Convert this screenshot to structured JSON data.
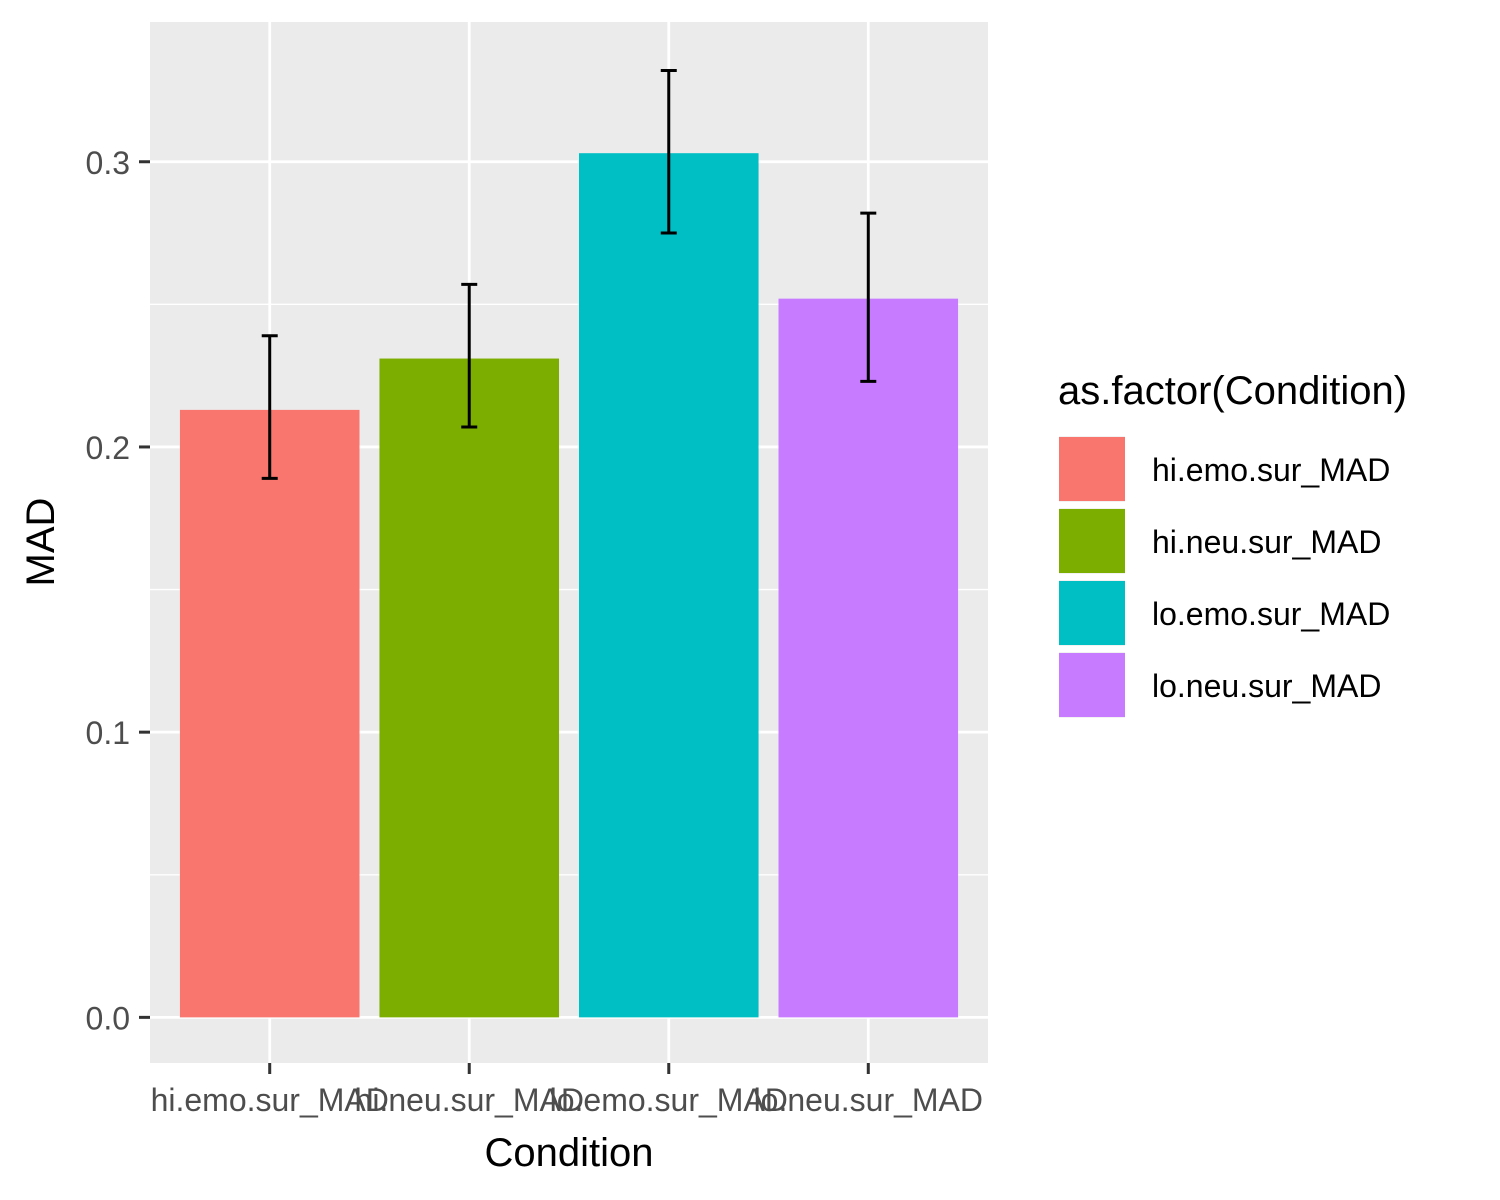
{
  "chart_data": {
    "type": "bar",
    "title": "",
    "xlabel": "Condition",
    "ylabel": "MAD",
    "categories": [
      "hi.emo.sur_MAD",
      "hi.neu.sur_MAD",
      "lo.emo.sur_MAD",
      "lo.neu.sur_MAD"
    ],
    "values": [
      0.213,
      0.231,
      0.303,
      0.252
    ],
    "error_low": [
      0.189,
      0.207,
      0.275,
      0.223
    ],
    "error_high": [
      0.239,
      0.257,
      0.332,
      0.282
    ],
    "colors": [
      "#F8766D",
      "#7CAE00",
      "#00BFC4",
      "#C77CFF"
    ],
    "ylim": [
      -0.016,
      0.349
    ],
    "yticks": [
      0.0,
      0.1,
      0.2,
      0.3
    ],
    "ytick_labels": [
      "0.0",
      "0.1",
      "0.2",
      "0.3"
    ],
    "grid": true,
    "legend": {
      "title": "as.factor(Condition)",
      "placement": "right",
      "entries": [
        "hi.emo.sur_MAD",
        "hi.neu.sur_MAD",
        "lo.emo.sur_MAD",
        "lo.neu.sur_MAD"
      ]
    }
  }
}
